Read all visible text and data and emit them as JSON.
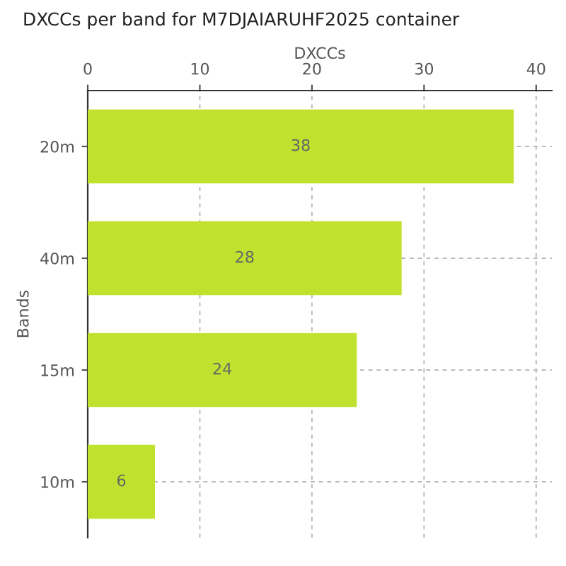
{
  "chart_data": {
    "type": "bar",
    "orientation": "horizontal",
    "title": "DXCCs per band for M7DJAIARUHF2025 container",
    "xlabel": "DXCCs",
    "ylabel": "Bands",
    "categories": [
      "20m",
      "40m",
      "15m",
      "10m"
    ],
    "values": [
      38,
      28,
      24,
      6
    ],
    "color": "#c0e22e",
    "xlim": [
      0,
      41.4
    ],
    "xticks": [
      0,
      10,
      20,
      30,
      40
    ],
    "grid": true,
    "data_labels": true
  }
}
